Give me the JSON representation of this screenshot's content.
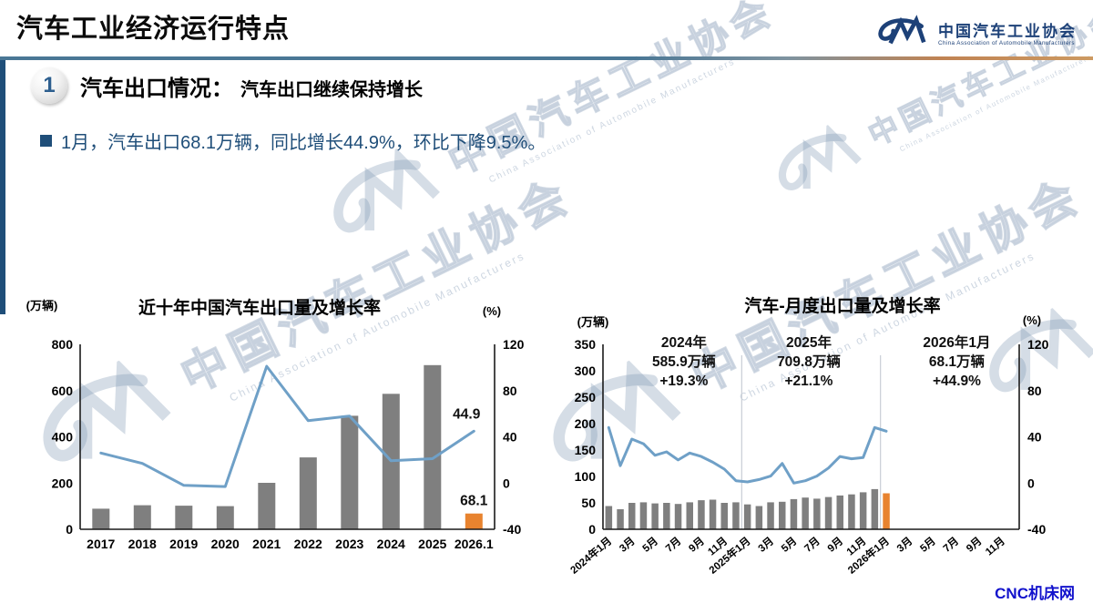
{
  "page": {
    "title": "汽车工业经济运行特点",
    "footer_credit": "CNC机床网"
  },
  "logo": {
    "name_cn": "中国汽车工业协会",
    "name_en": "China Association of Automobile Manufacturers"
  },
  "watermark": {
    "cn": "中国汽车工业协会",
    "en": "China Association of Automobile Manufacturers"
  },
  "section": {
    "number": "1",
    "title": "汽车出口情况：",
    "subtitle": "汽车出口继续保持增长"
  },
  "bullet_text": "1月，汽车出口68.1万辆，同比增长44.9%，环比下降9.5%。",
  "colors": {
    "bar_gray": "#7F7F7F",
    "bar_orange": "#E8832F",
    "line_blue": "#6FA0C7",
    "axis_dark": "#1a1a1a",
    "year_divider": "#c9ced6",
    "accent_navy": "#1F4E79"
  },
  "chart_data": [
    {
      "type": "bar+line",
      "title": "近十年中国汽车出口量及增长率",
      "left_axis_label": "(万辆)",
      "right_axis_label": "(%)",
      "left_axis": {
        "min": 0,
        "max": 800,
        "ticks": [
          0,
          200,
          400,
          600,
          800
        ]
      },
      "right_axis": {
        "min": -40,
        "max": 120,
        "ticks": [
          -40,
          0,
          40,
          80,
          120
        ]
      },
      "categories": [
        "2017",
        "2018",
        "2019",
        "2020",
        "2021",
        "2022",
        "2023",
        "2024",
        "2025",
        "2026.1"
      ],
      "bars": {
        "name": "汽车出口量(万辆)",
        "values": [
          89,
          104,
          102,
          100,
          201,
          311,
          491,
          586,
          710,
          68.1
        ],
        "highlight_last": true
      },
      "line": {
        "name": "增长率(%)",
        "values": [
          26,
          17,
          -2,
          -3,
          101,
          54,
          58,
          19.3,
          21.1,
          44.9
        ]
      },
      "data_labels": [
        {
          "text": "44.9",
          "attach": "line-last"
        },
        {
          "text": "68.1",
          "attach": "bar-last"
        }
      ]
    },
    {
      "type": "bar+line",
      "title": "汽车-月度出口量及增长率",
      "left_axis_label": "(万辆)",
      "right_axis_label": "(%)",
      "left_axis": {
        "min": 0,
        "max": 350,
        "ticks": [
          0,
          50,
          100,
          150,
          200,
          250,
          300,
          350
        ]
      },
      "right_axis": {
        "min": -40,
        "max": 120,
        "ticks": [
          -40,
          0,
          40,
          80,
          120
        ]
      },
      "categories": [
        "2024年1月",
        "",
        "3月",
        "",
        "5月",
        "",
        "7月",
        "",
        "9月",
        "",
        "11月",
        "",
        "2025年1月",
        "",
        "3月",
        "",
        "5月",
        "",
        "7月",
        "",
        "9月",
        "",
        "11月",
        "",
        "2026年1月",
        "",
        "3月",
        "",
        "5月",
        "",
        "7月",
        "",
        "9月",
        "",
        "11月",
        ""
      ],
      "bars": {
        "name": "月度出口量(万辆)",
        "values": [
          44,
          38,
          50,
          51,
          49,
          50,
          48,
          51,
          55,
          56,
          50,
          51,
          47,
          44,
          51,
          52,
          57,
          60,
          58,
          61,
          64,
          66,
          70,
          76,
          68.1
        ],
        "highlight_last": true
      },
      "line": {
        "name": "增长率(%)",
        "values": [
          48,
          15,
          38,
          34,
          24,
          27,
          20,
          26,
          23,
          18,
          12,
          2,
          1,
          3,
          6,
          17,
          0,
          2,
          6,
          13,
          23,
          21,
          22,
          48,
          44.9
        ]
      },
      "year_dividers": [
        12,
        24
      ],
      "annotations": [
        {
          "lines": [
            "2024年",
            "585.9万辆",
            "+19.3%"
          ],
          "x_slot": 7.0
        },
        {
          "lines": [
            "2025年",
            "709.8万辆",
            "+21.1%"
          ],
          "x_slot": 17.8
        },
        {
          "lines": [
            "2026年1月",
            "68.1万辆",
            "+44.9%"
          ],
          "x_slot": 30.6
        }
      ]
    }
  ]
}
